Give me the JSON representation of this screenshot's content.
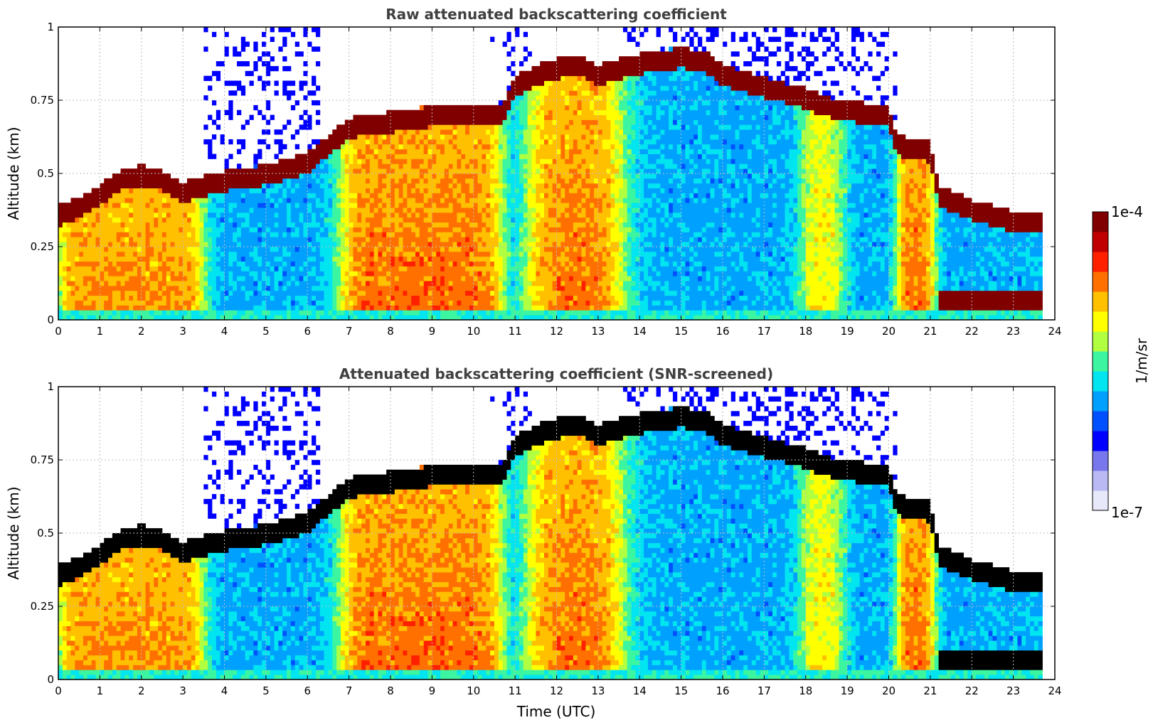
{
  "chart_data": [
    {
      "type": "heatmap",
      "title": "Raw attenuated backscattering coefficient",
      "ylabel": "Altitude (km)",
      "xlabel": "",
      "xlim": [
        0,
        24
      ],
      "ylim": [
        0,
        1
      ],
      "x_ticks": [
        "0",
        "1",
        "2",
        "3",
        "4",
        "5",
        "6",
        "7",
        "8",
        "9",
        "10",
        "11",
        "12",
        "13",
        "14",
        "15",
        "16",
        "17",
        "18",
        "19",
        "20",
        "21",
        "22",
        "23",
        "24"
      ],
      "y_ticks": [
        "0",
        "0.25",
        "0.5",
        "0.75",
        "1"
      ],
      "grid": true,
      "screened": false
    },
    {
      "type": "heatmap",
      "title": "Attenuated backscattering coefficient (SNR-screened)",
      "ylabel": "Altitude (km)",
      "xlabel": "Time (UTC)",
      "xlim": [
        0,
        24
      ],
      "ylim": [
        0,
        1
      ],
      "x_ticks": [
        "0",
        "1",
        "2",
        "3",
        "4",
        "5",
        "6",
        "7",
        "8",
        "9",
        "10",
        "11",
        "12",
        "13",
        "14",
        "15",
        "16",
        "17",
        "18",
        "19",
        "20",
        "21",
        "22",
        "23",
        "24"
      ],
      "y_ticks": [
        "0",
        "0.25",
        "0.5",
        "0.75",
        "1"
      ],
      "grid": true,
      "screened": true
    }
  ],
  "colorbar": {
    "label": "1/m/sr",
    "max_label": "1e-4",
    "min_label": "1e-7",
    "colors": [
      "#e8e8fb",
      "#b9b9f3",
      "#7878ec",
      "#0000ff",
      "#0050ff",
      "#00a0ff",
      "#00e5f0",
      "#3cf5a0",
      "#b0ff40",
      "#ffff00",
      "#ffc000",
      "#ff7000",
      "#ff2000",
      "#c00000",
      "#800000"
    ]
  },
  "data_source_summary": {
    "cloud_layers": [
      {
        "t0": 0.0,
        "t1": 3.5
      },
      {
        "t0": 6.8,
        "t1": 10.7
      },
      {
        "t0": 11.3,
        "t1": 13.7
      },
      {
        "t0": 17.5,
        "t1": 19.0
      },
      {
        "t0": 20.1,
        "t1": 21.1
      }
    ]
  }
}
